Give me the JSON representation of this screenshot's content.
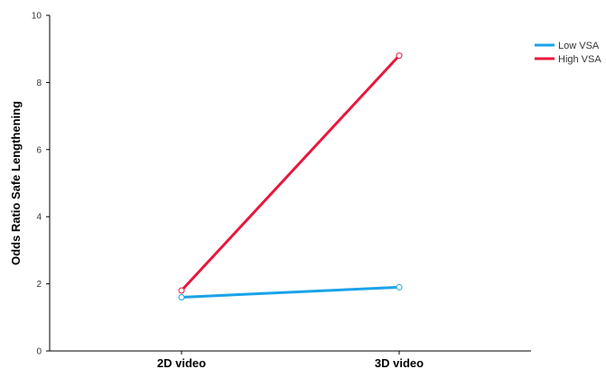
{
  "chart_data": {
    "type": "line",
    "title": "",
    "xlabel": "",
    "ylabel": "Odds Ratio Safe Lengthening",
    "categories": [
      "2D video",
      "3D video"
    ],
    "ylim": [
      0,
      10
    ],
    "yticks": [
      "0",
      "2",
      "4",
      "6",
      "8",
      "10"
    ],
    "grid": false,
    "legend_position": "top-right",
    "series": [
      {
        "name": "Low VSA",
        "values": [
          1.6,
          1.9
        ],
        "color": "#1aa3e8"
      },
      {
        "name": "High VSA",
        "values": [
          1.8,
          8.8
        ],
        "color": "#e8173c"
      }
    ]
  }
}
